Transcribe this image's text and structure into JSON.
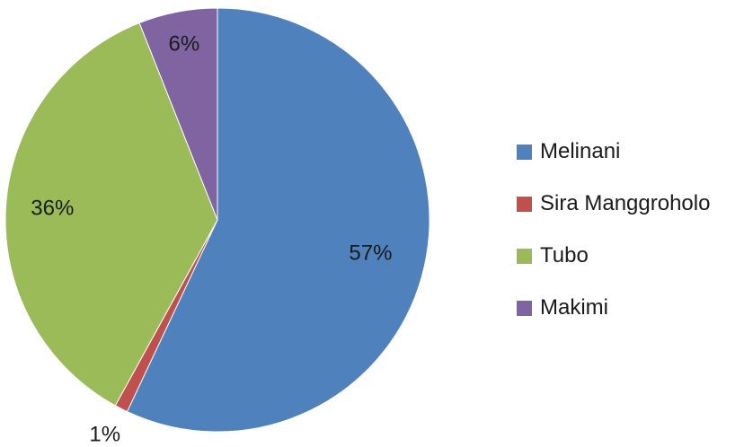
{
  "chart_data": {
    "type": "pie",
    "title": "",
    "legend_position": "right",
    "start_angle_deg": 0,
    "direction": "clockwise",
    "slices": [
      {
        "name": "Melinani",
        "value": 57,
        "label": "57%",
        "color": "#4F81BD"
      },
      {
        "name": "Sira Manggroholo",
        "value": 1,
        "label": "1%",
        "color": "#C0504D"
      },
      {
        "name": "Tubo",
        "value": 36,
        "label": "36%",
        "color": "#9BBB59"
      },
      {
        "name": "Makimi",
        "value": 6,
        "label": "6%",
        "color": "#8064A2"
      }
    ]
  }
}
